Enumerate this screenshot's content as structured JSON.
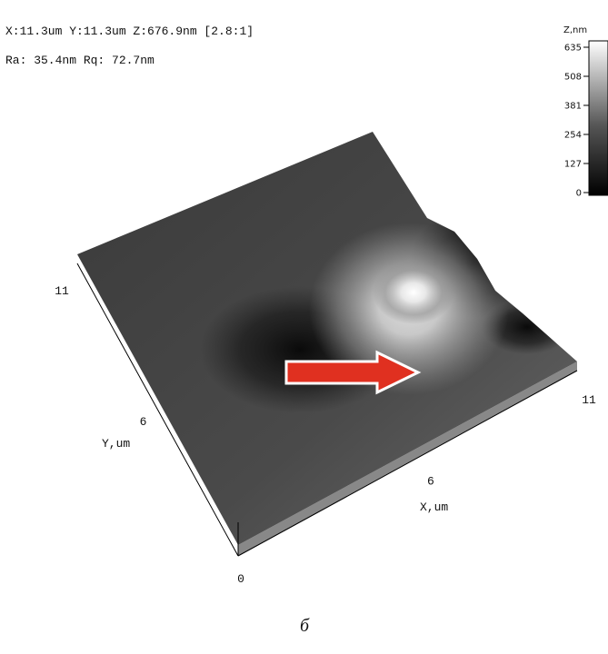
{
  "header": {
    "line1": "X:11.3um  Y:11.3um  Z:676.9nm [2.8:1]",
    "line2": "Ra: 35.4nm  Rq: 72.7nm"
  },
  "colorbar": {
    "label": "Z,nm",
    "ticks": [
      635,
      508,
      381,
      254,
      127,
      0
    ]
  },
  "axes": {
    "x_label": "X,um",
    "y_label": "Y,um",
    "x_ticks": [
      0,
      6,
      11
    ],
    "y_ticks": [
      6,
      11
    ]
  },
  "caption": "б"
}
